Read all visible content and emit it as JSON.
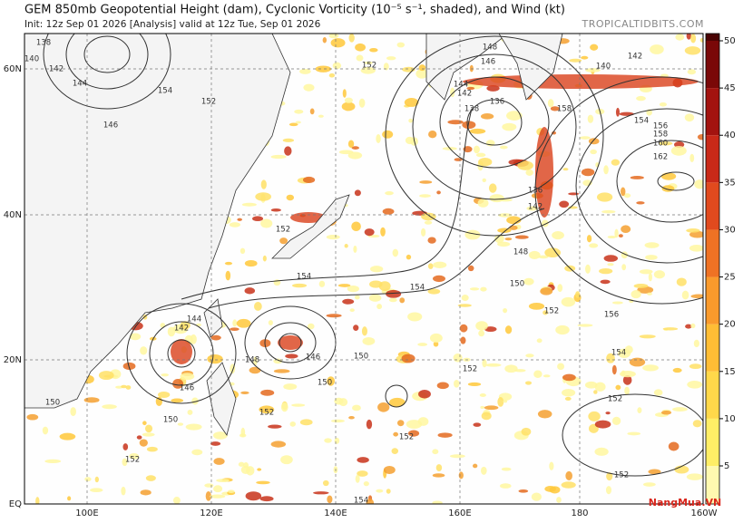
{
  "header": {
    "title": "GEM 850mb Geopotential Height (dam), Cyclonic Vorticity (10⁻⁵ s⁻¹, shaded), and Wind (kt)",
    "subtitle": "Init: 12z Sep 01 2026   [Analysis]   valid at 12z Tue, Sep 01 2026",
    "brand": "TROPICALTIDBITS.COM"
  },
  "map": {
    "lat_labels": [
      "60N",
      "40N",
      "20N",
      "EQ"
    ],
    "lon_labels": [
      "100E",
      "120E",
      "140E",
      "160E",
      "180",
      "160W"
    ],
    "contour_labels": [
      "138",
      "140",
      "142",
      "144",
      "146",
      "152",
      "152",
      "152",
      "154",
      "148",
      "146",
      "144",
      "142",
      "138",
      "136",
      "140",
      "142",
      "154",
      "156",
      "158",
      "160",
      "162",
      "136",
      "142",
      "148",
      "150",
      "152",
      "156",
      "154",
      "152",
      "152",
      "154",
      "152",
      "150",
      "144",
      "142",
      "146",
      "148",
      "146",
      "150",
      "150",
      "152",
      "150",
      "152",
      "154",
      "152",
      "154",
      "158"
    ]
  },
  "colorbar": {
    "ticks": [
      5,
      10,
      15,
      20,
      25,
      30,
      35,
      40,
      45,
      50
    ]
  },
  "watermark": "NangMua.VN"
}
